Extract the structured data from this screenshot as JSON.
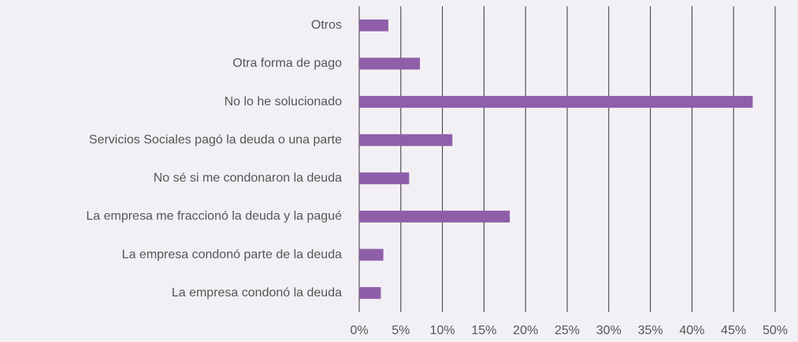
{
  "chart_data": {
    "type": "barh",
    "categories": [
      "Otros",
      "Otra forma de pago",
      "No lo he solucionado",
      "Servicios Sociales pagó la deuda o una parte",
      "No sé si me condonaron la deuda",
      "La empresa me fraccionó la deuda y la pagué",
      "La empresa condonó parte de la deuda",
      "La empresa condonó la deuda"
    ],
    "values": [
      3.5,
      7.3,
      47.3,
      11.2,
      6.0,
      18.1,
      2.9,
      2.6
    ],
    "color": "#8e5fa8",
    "xlim": [
      0,
      50
    ],
    "xticks": [
      {
        "value": 0,
        "label": "0%"
      },
      {
        "value": 5,
        "label": "5%"
      },
      {
        "value": 10,
        "label": "10%"
      },
      {
        "value": 15,
        "label": "15%"
      },
      {
        "value": 20,
        "label": "20%"
      },
      {
        "value": 25,
        "label": "25%"
      },
      {
        "value": 30,
        "label": "30%"
      },
      {
        "value": 35,
        "label": "35%"
      },
      {
        "value": 40,
        "label": "40%"
      },
      {
        "value": 45,
        "label": "45%"
      },
      {
        "value": 50,
        "label": "50%"
      }
    ],
    "grid": true
  }
}
